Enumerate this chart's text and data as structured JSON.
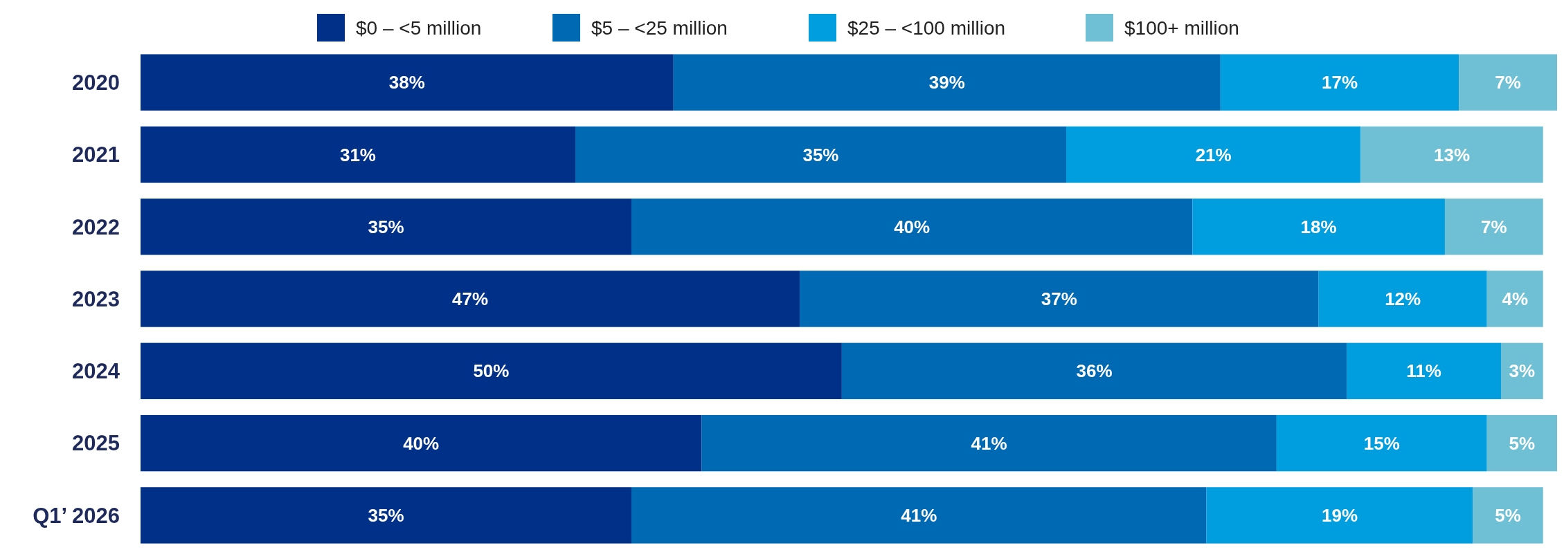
{
  "chart_data": {
    "type": "bar",
    "orientation": "horizontal",
    "stacked": true,
    "tick_labels": "y",
    "legend": "top",
    "xlim": [
      0,
      101
    ],
    "categories": [
      "2020",
      "2021",
      "2022",
      "2023",
      "2024",
      "2025",
      "Q1’ 2026"
    ],
    "series": [
      {
        "name": "$0 – <5 million",
        "color": "#003087",
        "values": [
          38,
          31,
          35,
          47,
          50,
          40,
          35
        ],
        "value_labels": [
          "38%",
          "31%",
          "35%",
          "47%",
          "50%",
          "40%",
          "35%"
        ]
      },
      {
        "name": "$5 – <25 million",
        "color": "#0069b4",
        "values": [
          39,
          35,
          40,
          37,
          36,
          41,
          41
        ],
        "value_labels": [
          "39%",
          "35%",
          "40%",
          "37%",
          "36%",
          "41%",
          "41%"
        ]
      },
      {
        "name": "$25 – <100 million",
        "color": "#009ddf",
        "values": [
          17,
          21,
          18,
          12,
          11,
          15,
          19
        ],
        "value_labels": [
          "17%",
          "21%",
          "18%",
          "12%",
          "11%",
          "15%",
          "19%"
        ]
      },
      {
        "name": "$100+ million",
        "color": "#6fc0d4",
        "values": [
          7,
          13,
          7,
          4,
          3,
          5,
          5
        ],
        "value_labels": [
          "7%",
          "13%",
          "7%",
          "4%",
          "3%",
          "5%",
          "5%"
        ]
      }
    ]
  }
}
